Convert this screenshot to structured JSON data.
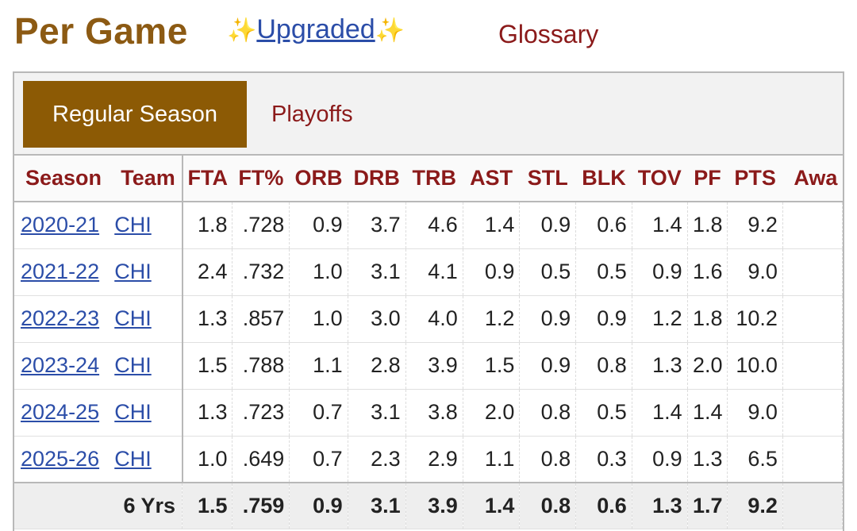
{
  "header": {
    "title": "Per Game",
    "sparkle": "✨",
    "upgraded_label": "Upgraded",
    "glossary_label": "Glossary"
  },
  "tabs": [
    {
      "label": "Regular Season",
      "active": true
    },
    {
      "label": "Playoffs",
      "active": false
    }
  ],
  "table": {
    "columns": [
      "Season",
      "Team",
      "FTA",
      "FT%",
      "ORB",
      "DRB",
      "TRB",
      "AST",
      "STL",
      "BLK",
      "TOV",
      "PF",
      "PTS",
      "Awa"
    ],
    "rows": [
      {
        "season": "2020-21",
        "team": "CHI",
        "fta": "1.8",
        "ftp": ".728",
        "orb": "0.9",
        "drb": "3.7",
        "trb": "4.6",
        "ast": "1.4",
        "stl": "0.9",
        "blk": "0.6",
        "tov": "1.4",
        "pf": "1.8",
        "pts": "9.2",
        "awards": ""
      },
      {
        "season": "2021-22",
        "team": "CHI",
        "fta": "2.4",
        "ftp": ".732",
        "orb": "1.0",
        "drb": "3.1",
        "trb": "4.1",
        "ast": "0.9",
        "stl": "0.5",
        "blk": "0.5",
        "tov": "0.9",
        "pf": "1.6",
        "pts": "9.0",
        "awards": ""
      },
      {
        "season": "2022-23",
        "team": "CHI",
        "fta": "1.3",
        "ftp": ".857",
        "orb": "1.0",
        "drb": "3.0",
        "trb": "4.0",
        "ast": "1.2",
        "stl": "0.9",
        "blk": "0.9",
        "tov": "1.2",
        "pf": "1.8",
        "pts": "10.2",
        "awards": ""
      },
      {
        "season": "2023-24",
        "team": "CHI",
        "fta": "1.5",
        "ftp": ".788",
        "orb": "1.1",
        "drb": "2.8",
        "trb": "3.9",
        "ast": "1.5",
        "stl": "0.9",
        "blk": "0.8",
        "tov": "1.3",
        "pf": "2.0",
        "pts": "10.0",
        "awards": ""
      },
      {
        "season": "2024-25",
        "team": "CHI",
        "fta": "1.3",
        "ftp": ".723",
        "orb": "0.7",
        "drb": "3.1",
        "trb": "3.8",
        "ast": "2.0",
        "stl": "0.8",
        "blk": "0.5",
        "tov": "1.4",
        "pf": "1.4",
        "pts": "9.0",
        "awards": ""
      },
      {
        "season": "2025-26",
        "team": "CHI",
        "fta": "1.0",
        "ftp": ".649",
        "orb": "0.7",
        "drb": "2.3",
        "trb": "2.9",
        "ast": "1.1",
        "stl": "0.8",
        "blk": "0.3",
        "tov": "0.9",
        "pf": "1.3",
        "pts": "6.5",
        "awards": ""
      }
    ],
    "total": {
      "label": "6 Yrs",
      "fta": "1.5",
      "ftp": ".759",
      "orb": "0.9",
      "drb": "3.1",
      "trb": "3.9",
      "ast": "1.4",
      "stl": "0.8",
      "blk": "0.6",
      "tov": "1.3",
      "pf": "1.7",
      "pts": "9.2",
      "awards": ""
    }
  },
  "colors": {
    "title": "#8c5a13",
    "active_tab_bg": "#8c5a05",
    "header_text": "#8b1a1a",
    "link": "#2b4da8"
  }
}
